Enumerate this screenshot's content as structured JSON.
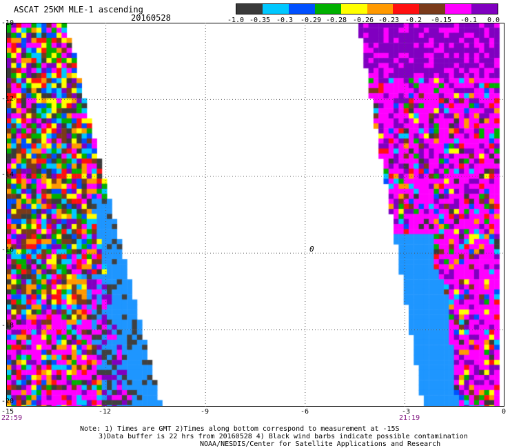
{
  "header": {
    "title": "ASCAT 25KM MLE-1 ascending",
    "date": "20160528"
  },
  "colorbar": {
    "colors": [
      "#3a3a3a",
      "#00c8ff",
      "#0050ff",
      "#00b000",
      "#ffff00",
      "#ff9900",
      "#ff1010",
      "#7a3a1a",
      "#ff00ff",
      "#8000c0"
    ],
    "labels": [
      "-1.0",
      "-0.35",
      "-0.3",
      "-0.29",
      "-0.28",
      "-0.26",
      "-0.23",
      "-0.2",
      "-0.15",
      "-0.1",
      "0.0"
    ]
  },
  "map": {
    "lon_ticks": [
      "-15",
      "-12",
      "-9",
      "-6",
      "-3",
      "0"
    ],
    "lat_ticks": [
      "-10",
      "-12",
      "-14",
      "-16",
      "-18",
      "-20"
    ],
    "time_left": "22:59",
    "time_right": "21:19",
    "center_label": "0",
    "fill_colors": {
      "light_blue": "#1e96ff",
      "dark_gray": "#404040"
    }
  },
  "notes": {
    "line1": "Note: 1) Times are GMT 2)Times along bottom correspond to measurement at -15S",
    "line2": "3)Data buffer is 22 hrs from 20160528 4) Black wind barbs indicate possible contamination",
    "line3": "NOAA/NESDIS/Center for Satellite Applications and Research"
  }
}
